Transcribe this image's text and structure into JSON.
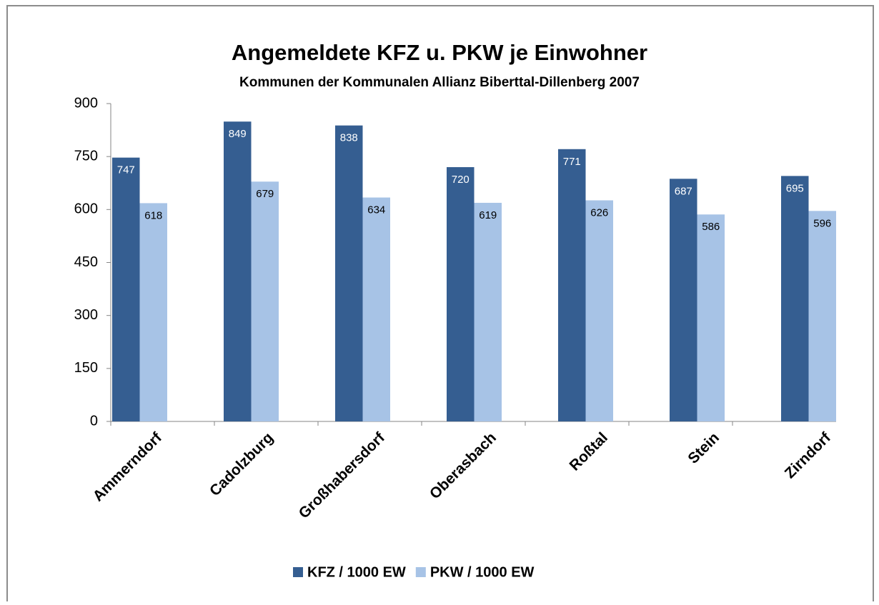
{
  "chart_data": {
    "type": "bar",
    "title": "Angemeldete KFZ u. PKW je Einwohner",
    "subtitle": "Kommunen der Kommunalen Allianz Biberttal-Dillenberg 2007",
    "categories": [
      "Ammerndorf",
      "Cadolzburg",
      "Großhabersdorf",
      "Oberasbach",
      "Roßtal",
      "Stein",
      "Zirndorf"
    ],
    "series": [
      {
        "name": "KFZ / 1000 EW",
        "color": "#355e91",
        "values": [
          747,
          849,
          838,
          720,
          771,
          687,
          695
        ]
      },
      {
        "name": "PKW / 1000 EW",
        "color": "#a7c3e6",
        "values": [
          618,
          679,
          634,
          619,
          626,
          586,
          596
        ]
      }
    ],
    "ylim": [
      0,
      900
    ],
    "yticks": [
      0,
      150,
      300,
      450,
      600,
      750,
      900
    ],
    "legend": "bottom"
  }
}
